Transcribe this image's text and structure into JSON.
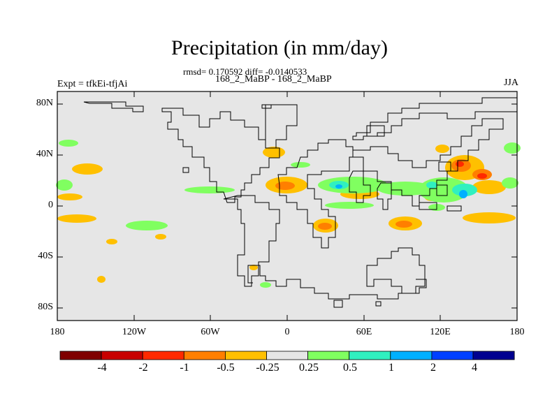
{
  "title": "Precipitation (in mm/day)",
  "stats": "rmsd= 0.170592 diff= -0.0140533",
  "subtitle": "168_2_MaBP - 168_2_MaBP",
  "experiment": "Expt = tfkEi-tfjAi",
  "season": "JJA",
  "y_ticks": [
    "80N",
    "40N",
    "0",
    "40S",
    "80S"
  ],
  "x_ticks": [
    "180",
    "120W",
    "60W",
    "0",
    "60E",
    "120E",
    "180"
  ],
  "colorbar": {
    "colors": [
      "#7f0000",
      "#c80000",
      "#ff2a00",
      "#ff7f00",
      "#ffc000",
      "#e6e6e6",
      "#80ff60",
      "#30f0c0",
      "#00b0ff",
      "#0040ff",
      "#000090"
    ],
    "labels": [
      "-4",
      "-2",
      "-1",
      "-0.5",
      "-0.25",
      "0.25",
      "0.5",
      "1",
      "2",
      "4"
    ]
  },
  "colors": {
    "ocean": "#e6e6e6",
    "orange": "#ffc000",
    "dark_orange": "#ff7f00",
    "red": "#ff2a00",
    "green": "#80ff60",
    "cyan": "#30f0c0",
    "blue": "#00b0ff"
  }
}
